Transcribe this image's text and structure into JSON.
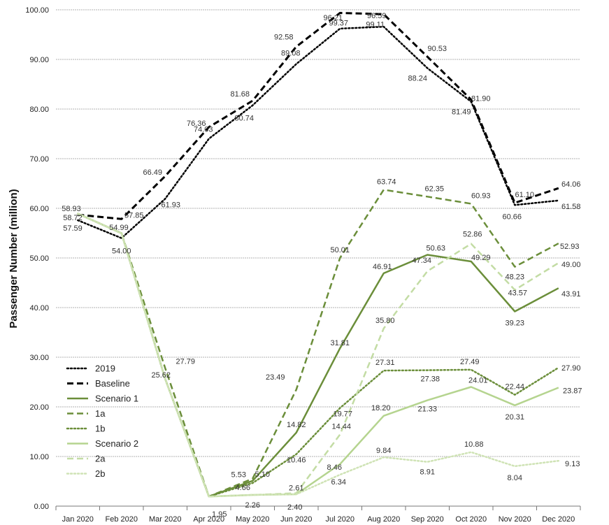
{
  "chart_data": {
    "type": "line",
    "ylabel": "Passenger Number (million)",
    "xlabel": "",
    "ylim": [
      0,
      100
    ],
    "yticks": [
      "0.00",
      "10.00",
      "20.00",
      "30.00",
      "40.00",
      "50.00",
      "60.00",
      "70.00",
      "80.00",
      "90.00",
      "100.00"
    ],
    "grid": true,
    "legend_position": "lower-left",
    "categories": [
      "Jan 2020",
      "Feb 2020",
      "Mar 2020",
      "Apr 2020",
      "May 2020",
      "Jun 2020",
      "Jul 2020",
      "Aug 2020",
      "Sep 2020",
      "Oct 2020",
      "Nov 2020",
      "Dec 2020"
    ],
    "series": [
      {
        "name": "2019",
        "color": "#000000",
        "style": "dotted",
        "width": 2.5,
        "values": [
          57.59,
          54.0,
          61.93,
          74.03,
          80.74,
          89.08,
          96.21,
          96.59,
          88.24,
          81.49,
          60.66,
          61.58
        ],
        "labels": [
          null,
          "54.00",
          "61.93",
          "74.03",
          "80.74",
          "89.08",
          "96.21",
          "96.59",
          "88.24",
          "81.49",
          "60.66",
          "61.58"
        ]
      },
      {
        "name": "Baseline",
        "color": "#000000",
        "style": "dashed",
        "width": 3,
        "values": [
          58.72,
          57.85,
          66.49,
          76.36,
          81.68,
          92.58,
          99.37,
          99.11,
          90.53,
          81.9,
          61.1,
          64.06
        ],
        "labels": [
          null,
          "57.85",
          "66.49",
          "76.36",
          "81.68",
          "92.58",
          "99.37",
          "99.11",
          "90.53",
          "81.90",
          "61.10",
          "64.06"
        ]
      },
      {
        "name": "Scenario 1",
        "color": "#6b8e3a",
        "style": "solid",
        "width": 2.5,
        "values": [
          58.93,
          54.99,
          25.62,
          1.95,
          5.1,
          14.82,
          31.81,
          46.91,
          50.63,
          49.29,
          39.23,
          43.91
        ],
        "labels": [
          null,
          null,
          "25.62",
          "1.95",
          "5.10",
          "14.82",
          "31.81",
          "46.91",
          "50.63",
          "49.29",
          "39.23",
          "43.91"
        ]
      },
      {
        "name": "1a",
        "color": "#6b8e3a",
        "style": "dashed",
        "width": 2.5,
        "values": [
          58.93,
          54.99,
          27.79,
          1.95,
          5.53,
          23.49,
          50.01,
          63.74,
          62.35,
          60.93,
          48.23,
          52.93
        ],
        "labels": [
          null,
          null,
          "27.79",
          null,
          "5.53",
          "23.49",
          "50.01",
          "63.74",
          "62.35",
          "60.93",
          "48.23",
          "52.93"
        ]
      },
      {
        "name": "1b",
        "color": "#6b8e3a",
        "style": "dotted",
        "width": 2.5,
        "values": [
          58.93,
          54.99,
          25.62,
          1.95,
          4.66,
          10.46,
          19.77,
          27.31,
          27.38,
          27.49,
          22.44,
          27.9
        ],
        "labels": [
          null,
          null,
          null,
          null,
          "4.66",
          "10.46",
          "19.77",
          "27.31",
          "27.38",
          "27.49",
          "22.44",
          "27.90"
        ]
      },
      {
        "name": "Scenario 2",
        "color": "#b5d48f",
        "style": "solid",
        "width": 2.5,
        "values": [
          58.93,
          54.99,
          25.62,
          1.95,
          2.26,
          2.4,
          8.46,
          18.2,
          21.33,
          24.01,
          20.31,
          23.87
        ],
        "labels": [
          null,
          null,
          null,
          null,
          "2.26",
          "2.40",
          "8.46",
          "18.20",
          "21.33",
          "24.01",
          "20.31",
          "23.87"
        ]
      },
      {
        "name": "2a",
        "color": "#c3dca4",
        "style": "dashed",
        "width": 2.5,
        "values": [
          58.93,
          54.99,
          25.62,
          1.95,
          2.26,
          2.61,
          14.44,
          35.8,
          47.34,
          52.86,
          43.57,
          49.0
        ],
        "labels": [
          null,
          null,
          null,
          null,
          null,
          "2.61",
          "14.44",
          "35.80",
          "47.34",
          "52.86",
          "43.57",
          "49.00"
        ]
      },
      {
        "name": "2b",
        "color": "#cfe3b5",
        "style": "dotted",
        "width": 2.5,
        "values": [
          58.93,
          54.99,
          25.62,
          1.95,
          2.26,
          2.4,
          6.34,
          9.84,
          8.91,
          10.88,
          8.04,
          9.13
        ],
        "labels": [
          null,
          null,
          null,
          null,
          null,
          null,
          "6.34",
          "9.84",
          "8.91",
          "10.88",
          "8.04",
          "9.13"
        ]
      }
    ],
    "extra_labels": [
      "58.93",
      "58.72",
      "57.59",
      "54.99"
    ]
  }
}
